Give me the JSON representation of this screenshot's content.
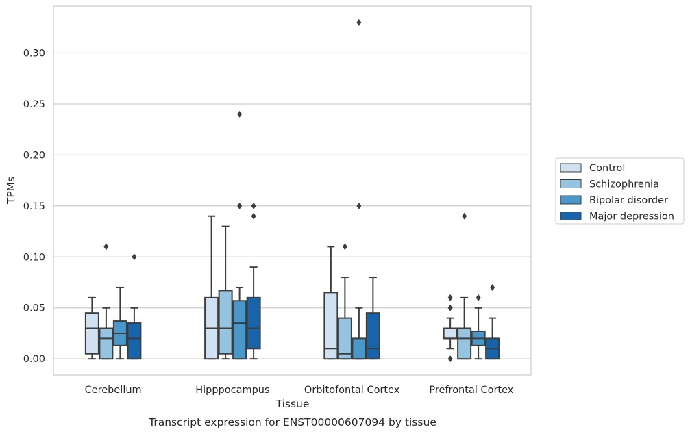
{
  "chart_data": {
    "type": "box",
    "title": "",
    "caption": "Transcript expression for ENST00000607094 by tissue",
    "xlabel": "Tissue",
    "ylabel": "TPMs",
    "ylim": [
      -0.016,
      0.346
    ],
    "yticks": [
      0.0,
      0.05,
      0.1,
      0.15,
      0.2,
      0.25,
      0.3
    ],
    "ytick_labels": [
      "0.00",
      "0.05",
      "0.10",
      "0.15",
      "0.20",
      "0.25",
      "0.30"
    ],
    "grid": "horizontal",
    "legend_position": "right, outside plot",
    "categories": [
      "Cerebellum",
      "Hipppocampus",
      "Orbitofontal Cortex",
      "Prefrontal Cortex"
    ],
    "series": [
      {
        "name": "Control",
        "color": "#d0e1f2",
        "boxes": [
          {
            "whisker_low": 0.0,
            "q1": 0.005,
            "median": 0.03,
            "q3": 0.045,
            "whisker_high": 0.06,
            "outliers": []
          },
          {
            "whisker_low": 0.0,
            "q1": 0.0,
            "median": 0.03,
            "q3": 0.06,
            "whisker_high": 0.14,
            "outliers": []
          },
          {
            "whisker_low": 0.0,
            "q1": 0.0,
            "median": 0.01,
            "q3": 0.065,
            "whisker_high": 0.11,
            "outliers": []
          },
          {
            "whisker_low": 0.01,
            "q1": 0.02,
            "median": 0.02,
            "q3": 0.03,
            "whisker_high": 0.04,
            "outliers": [
              0.06,
              0.05,
              0.0
            ]
          }
        ]
      },
      {
        "name": "Schizophrenia",
        "color": "#94c4df",
        "boxes": [
          {
            "whisker_low": 0.0,
            "q1": 0.0,
            "median": 0.02,
            "q3": 0.03,
            "whisker_high": 0.05,
            "outliers": [
              0.11
            ]
          },
          {
            "whisker_low": 0.0,
            "q1": 0.005,
            "median": 0.03,
            "q3": 0.067,
            "whisker_high": 0.13,
            "outliers": []
          },
          {
            "whisker_low": 0.0,
            "q1": 0.0,
            "median": 0.005,
            "q3": 0.04,
            "whisker_high": 0.08,
            "outliers": [
              0.11
            ]
          },
          {
            "whisker_low": 0.0,
            "q1": 0.0,
            "median": 0.02,
            "q3": 0.03,
            "whisker_high": 0.06,
            "outliers": [
              0.14
            ]
          }
        ]
      },
      {
        "name": "Bipolar disorder",
        "color": "#4a98c9",
        "boxes": [
          {
            "whisker_low": 0.0,
            "q1": 0.013,
            "median": 0.025,
            "q3": 0.037,
            "whisker_high": 0.07,
            "outliers": []
          },
          {
            "whisker_low": 0.0,
            "q1": 0.0,
            "median": 0.035,
            "q3": 0.057,
            "whisker_high": 0.07,
            "outliers": [
              0.24,
              0.15
            ]
          },
          {
            "whisker_low": 0.0,
            "q1": 0.0,
            "median": 0.0,
            "q3": 0.02,
            "whisker_high": 0.05,
            "outliers": [
              0.33,
              0.15
            ]
          },
          {
            "whisker_low": 0.0,
            "q1": 0.013,
            "median": 0.02,
            "q3": 0.027,
            "whisker_high": 0.05,
            "outliers": [
              0.06
            ]
          }
        ]
      },
      {
        "name": "Major depression",
        "color": "#1764ab",
        "boxes": [
          {
            "whisker_low": 0.0,
            "q1": 0.0,
            "median": 0.02,
            "q3": 0.035,
            "whisker_high": 0.05,
            "outliers": [
              0.1
            ]
          },
          {
            "whisker_low": 0.0,
            "q1": 0.01,
            "median": 0.03,
            "q3": 0.06,
            "whisker_high": 0.09,
            "outliers": [
              0.15,
              0.14
            ]
          },
          {
            "whisker_low": 0.0,
            "q1": 0.0,
            "median": 0.01,
            "q3": 0.045,
            "whisker_high": 0.08,
            "outliers": []
          },
          {
            "whisker_low": 0.0,
            "q1": 0.0,
            "median": 0.01,
            "q3": 0.02,
            "whisker_high": 0.04,
            "outliers": [
              0.07
            ]
          }
        ]
      }
    ]
  }
}
